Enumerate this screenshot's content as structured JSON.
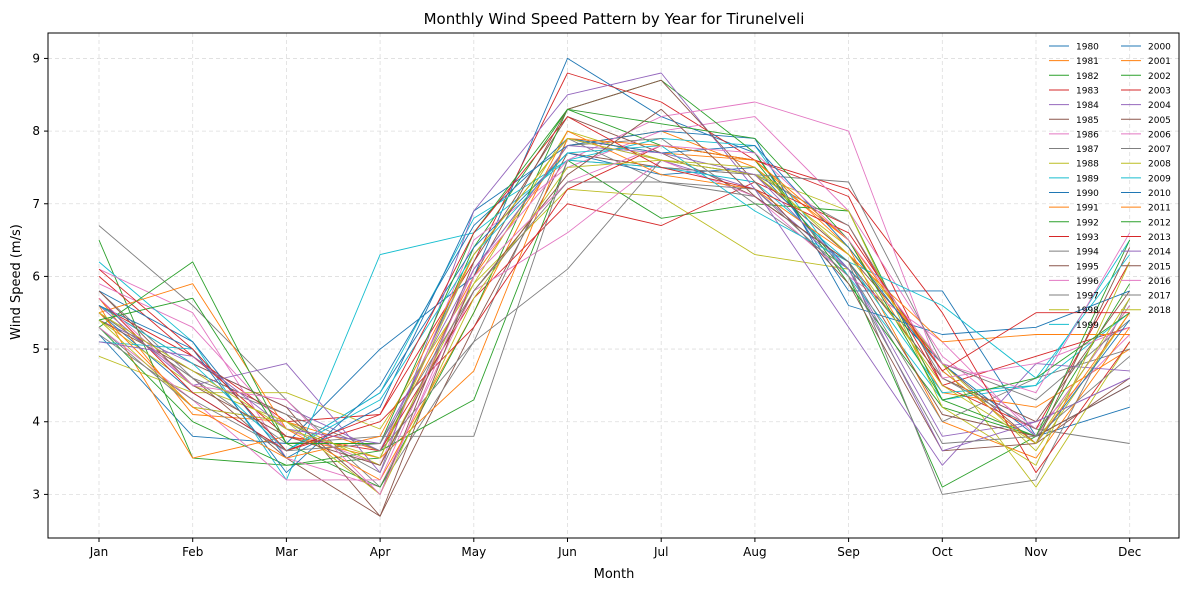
{
  "chart_data": {
    "type": "line",
    "title": "Monthly Wind Speed Pattern by Year for Tirunelveli",
    "xlabel": "Month",
    "ylabel": "Wind Speed (m/s)",
    "categories": [
      "Jan",
      "Feb",
      "Mar",
      "Apr",
      "May",
      "Jun",
      "Jul",
      "Aug",
      "Sep",
      "Oct",
      "Nov",
      "Dec"
    ],
    "ylim": [
      2.4,
      9.35
    ],
    "yticks": [
      "3",
      "4",
      "5",
      "6",
      "7",
      "8",
      "9"
    ],
    "grid": true,
    "legend_position": "top-right",
    "legend_columns": 2,
    "series": [
      {
        "name": "1980",
        "color": "#1f77b4",
        "values": [
          5.2,
          3.8,
          3.7,
          5.0,
          6.0,
          9.0,
          8.2,
          7.7,
          5.8,
          5.8,
          3.8,
          4.2
        ]
      },
      {
        "name": "1981",
        "color": "#ff7f0e",
        "values": [
          5.7,
          4.1,
          4.0,
          3.6,
          6.0,
          7.8,
          8.0,
          7.5,
          6.5,
          4.4,
          4.2,
          5.0
        ]
      },
      {
        "name": "1982",
        "color": "#2ca02c",
        "values": [
          6.5,
          3.5,
          3.4,
          3.5,
          6.4,
          8.3,
          7.8,
          7.6,
          6.0,
          3.1,
          3.8,
          5.6
        ]
      },
      {
        "name": "1983",
        "color": "#d62728",
        "values": [
          6.0,
          4.9,
          4.0,
          4.1,
          6.2,
          8.8,
          8.4,
          7.6,
          7.1,
          4.5,
          4.9,
          5.3
        ]
      },
      {
        "name": "1984",
        "color": "#9467bd",
        "values": [
          5.4,
          4.8,
          4.2,
          3.6,
          6.3,
          7.9,
          7.6,
          7.2,
          6.1,
          3.8,
          4.0,
          4.6
        ]
      },
      {
        "name": "1985",
        "color": "#8c564b",
        "values": [
          5.5,
          4.6,
          3.5,
          2.7,
          5.3,
          7.7,
          7.5,
          7.4,
          6.3,
          4.8,
          3.7,
          4.6
        ]
      },
      {
        "name": "1986",
        "color": "#e377c2",
        "values": [
          5.9,
          5.3,
          3.9,
          3.4,
          6.5,
          7.5,
          8.0,
          8.2,
          6.9,
          4.9,
          3.9,
          5.2
        ]
      },
      {
        "name": "1987",
        "color": "#7f7f7f",
        "values": [
          6.7,
          5.6,
          4.3,
          3.1,
          5.1,
          7.9,
          7.3,
          7.1,
          6.2,
          3.0,
          3.2,
          5.7
        ]
      },
      {
        "name": "1988",
        "color": "#bcbd22",
        "values": [
          4.9,
          4.4,
          4.4,
          3.9,
          5.9,
          7.2,
          7.1,
          6.3,
          6.1,
          4.8,
          3.1,
          5.1
        ]
      },
      {
        "name": "1989",
        "color": "#17becf",
        "values": [
          6.2,
          5.1,
          3.2,
          6.3,
          6.6,
          7.6,
          7.9,
          7.8,
          6.0,
          4.3,
          4.5,
          6.5
        ]
      },
      {
        "name": "1990",
        "color": "#1f77b4",
        "values": [
          5.5,
          4.4,
          3.6,
          4.4,
          6.4,
          7.7,
          7.4,
          7.5,
          6.1,
          4.8,
          3.8,
          4.5
        ]
      },
      {
        "name": "1991",
        "color": "#ff7f0e",
        "values": [
          5.6,
          3.5,
          3.8,
          3.5,
          4.7,
          7.9,
          7.7,
          7.6,
          6.4,
          4.0,
          3.5,
          5.3
        ]
      },
      {
        "name": "1992",
        "color": "#2ca02c",
        "values": [
          5.3,
          4.0,
          3.4,
          3.6,
          4.3,
          7.6,
          6.8,
          7.0,
          6.9,
          4.3,
          3.8,
          5.9
        ]
      },
      {
        "name": "1993",
        "color": "#d62728",
        "values": [
          5.6,
          4.9,
          3.8,
          3.6,
          5.7,
          7.0,
          6.7,
          7.3,
          6.7,
          4.5,
          3.9,
          6.2
        ]
      },
      {
        "name": "1994",
        "color": "#7f7f7f",
        "values": [
          5.3,
          4.2,
          4.0,
          3.3,
          6.1,
          7.8,
          7.9,
          7.0,
          6.1,
          4.0,
          4.6,
          5.0
        ]
      },
      {
        "name": "1995",
        "color": "#8c564b",
        "values": [
          5.4,
          4.7,
          4.1,
          3.0,
          6.2,
          8.2,
          7.7,
          7.1,
          6.2,
          4.6,
          4.0,
          5.8
        ]
      },
      {
        "name": "1996",
        "color": "#e377c2",
        "values": [
          6.1,
          5.5,
          3.5,
          3.1,
          5.8,
          6.6,
          7.6,
          7.1,
          6.0,
          5.1,
          3.8,
          5.6
        ]
      },
      {
        "name": "1997",
        "color": "#7f7f7f",
        "values": [
          5.8,
          4.6,
          3.7,
          3.8,
          3.8,
          7.6,
          7.5,
          7.4,
          6.7,
          4.6,
          3.9,
          3.7
        ]
      },
      {
        "name": "1998",
        "color": "#bcbd22",
        "values": [
          5.4,
          4.5,
          4.0,
          3.4,
          5.9,
          8.0,
          7.6,
          7.4,
          6.4,
          4.8,
          3.6,
          5.5
        ]
      },
      {
        "name": "1999",
        "color": "#17becf",
        "values": [
          5.1,
          5.0,
          3.6,
          4.4,
          6.8,
          7.6,
          7.5,
          7.3,
          6.2,
          4.4,
          4.5,
          5.5
        ]
      },
      {
        "name": "2000",
        "color": "#1f77b4",
        "values": [
          5.8,
          5.1,
          3.5,
          4.2,
          6.9,
          7.8,
          8.0,
          7.9,
          5.6,
          5.2,
          5.3,
          5.8
        ]
      },
      {
        "name": "2001",
        "color": "#ff7f0e",
        "values": [
          5.5,
          5.9,
          3.9,
          3.2,
          5.5,
          8.0,
          7.4,
          7.2,
          6.3,
          5.1,
          5.2,
          5.2
        ]
      },
      {
        "name": "2002",
        "color": "#2ca02c",
        "values": [
          5.3,
          6.2,
          3.7,
          3.1,
          5.5,
          8.3,
          8.7,
          7.7,
          5.9,
          4.2,
          3.8,
          6.5
        ]
      },
      {
        "name": "2003",
        "color": "#d62728",
        "values": [
          5.7,
          4.4,
          3.6,
          4.0,
          5.3,
          7.2,
          7.8,
          7.6,
          7.2,
          5.5,
          3.3,
          5.1
        ]
      },
      {
        "name": "2004",
        "color": "#9467bd",
        "values": [
          5.6,
          4.5,
          4.8,
          3.3,
          6.9,
          8.5,
          8.8,
          7.2,
          5.3,
          3.4,
          4.8,
          4.7
        ]
      },
      {
        "name": "2005",
        "color": "#8c564b",
        "values": [
          5.6,
          4.8,
          4.2,
          2.7,
          6.0,
          8.3,
          8.7,
          7.3,
          5.9,
          3.6,
          3.7,
          6.4
        ]
      },
      {
        "name": "2006",
        "color": "#e377c2",
        "values": [
          5.3,
          4.3,
          3.2,
          3.2,
          6.1,
          7.6,
          8.2,
          8.4,
          8.0,
          4.6,
          4.8,
          5.3
        ]
      },
      {
        "name": "2007",
        "color": "#7f7f7f",
        "values": [
          5.5,
          4.6,
          4.1,
          3.6,
          5.1,
          6.1,
          7.6,
          7.4,
          7.3,
          4.8,
          4.3,
          5.4
        ]
      },
      {
        "name": "2008",
        "color": "#bcbd22",
        "values": [
          5.4,
          4.2,
          4.0,
          3.0,
          5.7,
          7.5,
          7.6,
          7.4,
          6.9,
          4.2,
          3.4,
          6.2
        ]
      },
      {
        "name": "2009",
        "color": "#17becf",
        "values": [
          5.6,
          4.8,
          3.6,
          4.3,
          6.3,
          7.7,
          7.8,
          6.9,
          6.2,
          5.6,
          4.6,
          6.3
        ]
      },
      {
        "name": "2010",
        "color": "#1f77b4",
        "values": [
          5.6,
          5.0,
          3.3,
          4.5,
          6.7,
          7.9,
          7.7,
          7.8,
          6.4,
          4.7,
          3.7,
          5.4
        ]
      },
      {
        "name": "2011",
        "color": "#ff7f0e",
        "values": [
          5.5,
          4.2,
          3.5,
          3.8,
          6.3,
          7.9,
          7.8,
          7.6,
          6.5,
          4.7,
          3.7,
          5.5
        ]
      },
      {
        "name": "2012",
        "color": "#2ca02c",
        "values": [
          5.4,
          5.7,
          3.7,
          3.7,
          6.6,
          8.3,
          8.1,
          7.9,
          6.5,
          4.3,
          4.6,
          5.5
        ]
      },
      {
        "name": "2013",
        "color": "#d62728",
        "values": [
          6.1,
          5.0,
          3.6,
          4.1,
          6.6,
          8.2,
          7.5,
          7.2,
          6.6,
          4.7,
          5.5,
          5.5
        ]
      },
      {
        "name": "2014",
        "color": "#9467bd",
        "values": [
          5.1,
          4.9,
          3.9,
          3.7,
          6.1,
          7.8,
          7.7,
          7.4,
          6.1,
          3.6,
          4.0,
          4.6
        ]
      },
      {
        "name": "2015",
        "color": "#8c564b",
        "values": [
          5.8,
          4.5,
          3.8,
          3.4,
          5.8,
          7.4,
          8.3,
          7.1,
          6.2,
          4.1,
          3.8,
          4.5
        ]
      },
      {
        "name": "2016",
        "color": "#e377c2",
        "values": [
          5.7,
          4.5,
          4.3,
          3.0,
          6.0,
          7.3,
          7.8,
          7.7,
          6.5,
          4.8,
          4.4,
          6.6
        ]
      },
      {
        "name": "2017",
        "color": "#7f7f7f",
        "values": [
          5.2,
          4.3,
          3.6,
          3.7,
          5.8,
          7.3,
          7.3,
          7.2,
          6.0,
          3.7,
          3.8,
          4.9
        ]
      },
      {
        "name": "2018",
        "color": "#bcbd22",
        "values": [
          5.5,
          4.7,
          3.9,
          3.5,
          6.3,
          7.9,
          7.6,
          7.5,
          6.3,
          4.5,
          3.7,
          5.7
        ]
      }
    ]
  }
}
